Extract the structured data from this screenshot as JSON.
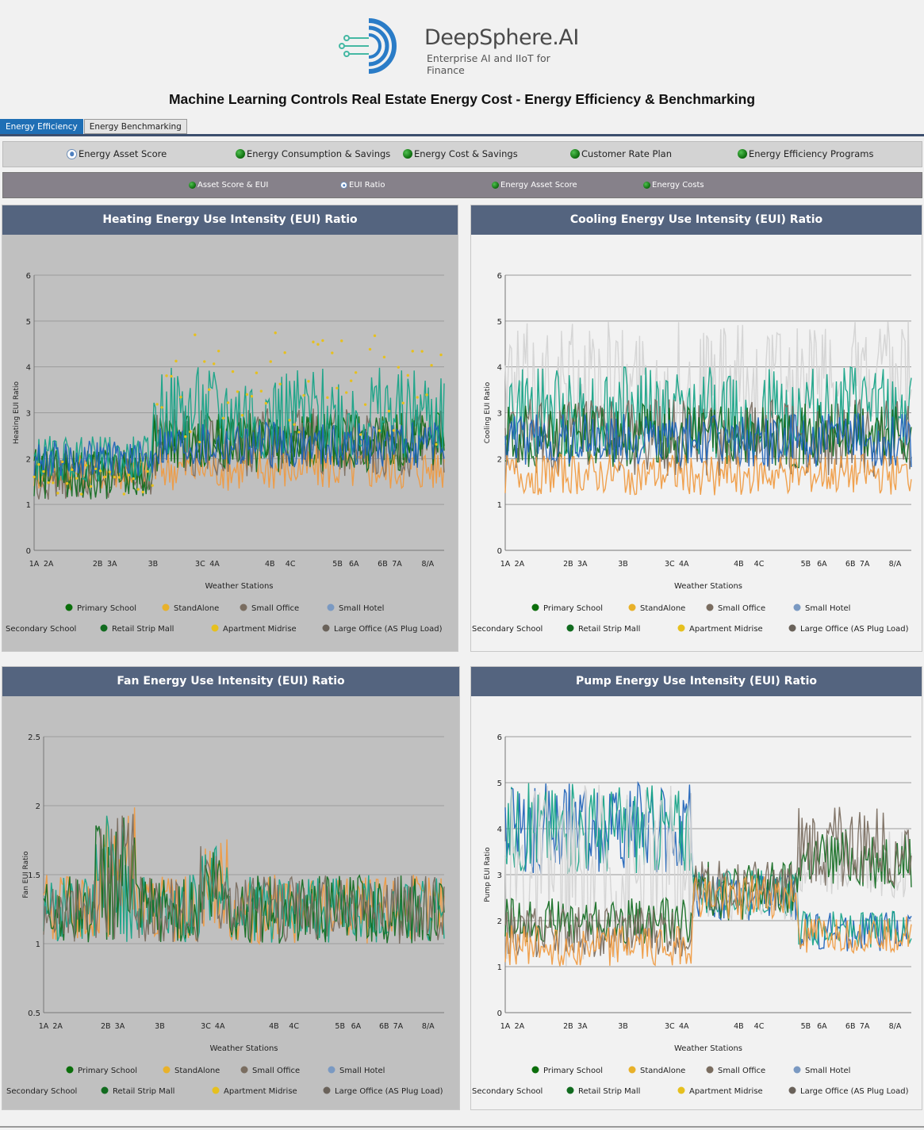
{
  "brand": {
    "name": "DeepSphere.AI",
    "tagline": "Enterprise AI and IIoT for Finance"
  },
  "page_title": "Machine Learning Controls Real Estate Energy Cost - Energy Efficiency & Benchmarking",
  "tabs": [
    {
      "label": "Energy Efficiency",
      "active": true
    },
    {
      "label": "Energy Benchmarking",
      "active": false
    }
  ],
  "nav_primary": [
    {
      "label": "Energy Asset Score",
      "selected": true
    },
    {
      "label": "Energy Consumption & Savings",
      "selected": false
    },
    {
      "label": "Energy Cost & Savings",
      "selected": false
    },
    {
      "label": "Customer Rate Plan",
      "selected": false
    },
    {
      "label": "Energy Efficiency Programs",
      "selected": false
    }
  ],
  "nav_secondary": [
    {
      "label": "Asset Score & EUI",
      "selected": false
    },
    {
      "label": "EUI Ratio",
      "selected": true
    },
    {
      "label": "Energy Asset Score",
      "selected": false
    },
    {
      "label": "Energy Costs",
      "selected": false
    }
  ],
  "legend_row1": [
    "Primary School",
    "StandAlone",
    "Small Office",
    "Small Hotel"
  ],
  "legend_row2": [
    "Secondary School",
    "Retail Strip Mall",
    "Apartment Midrise",
    "Large Office (AS Plug Load)"
  ],
  "series_colors": {
    "Primary School": "#0b6e0b",
    "StandAlone": "#e8b12a",
    "Small Office": "#7a6d60",
    "Small Hotel": "#7a99c2",
    "Secondary School": "#f09a40",
    "Retail Strip Mall": "#116b1f",
    "Apartment Midrise": "#e6c01e",
    "Large Office (AS Plug Load)": "#6a625a"
  },
  "line_colors": {
    "teal": "#14a386",
    "blue": "#1d62b8",
    "light_grey": "#d2d2d2"
  },
  "chart_data": [
    {
      "type": "line",
      "title": "Heating Energy Use Intensity (EUI) Ratio",
      "xlabel": "Weather Stations",
      "ylabel": "Heating EUI Ratio",
      "ylim": [
        0,
        6
      ],
      "yticks": [
        "0",
        "1",
        "2",
        "3",
        "4",
        "5",
        "6"
      ],
      "theme": "grey",
      "x_ticks": [
        {
          "label": "1A",
          "pos": 0.0
        },
        {
          "label": "2A",
          "pos": 0.035
        },
        {
          "label": "2B",
          "pos": 0.155
        },
        {
          "label": "3A",
          "pos": 0.19
        },
        {
          "label": "3B",
          "pos": 0.29
        },
        {
          "label": "3C",
          "pos": 0.405
        },
        {
          "label": "4A",
          "pos": 0.44
        },
        {
          "label": "4B",
          "pos": 0.575
        },
        {
          "label": "4C",
          "pos": 0.625
        },
        {
          "label": "5B",
          "pos": 0.74
        },
        {
          "label": "6A",
          "pos": 0.78
        },
        {
          "label": "6B",
          "pos": 0.85
        },
        {
          "label": "7A",
          "pos": 0.885
        },
        {
          "label": "8/A",
          "pos": 0.96
        }
      ],
      "segments": [
        {
          "end": 0.29,
          "levels": {
            "Primary School": [
              1.3,
              2.3
            ],
            "Secondary School": [
              1.3,
              2.1
            ],
            "Small Office": [
              1.1,
              2.0
            ],
            "Retail Strip Mall": [
              1.1,
              2.2
            ],
            "teal": [
              1.5,
              2.5
            ],
            "blue": [
              1.6,
              2.4
            ],
            "Apartment Midrise": [
              1.2,
              2.0
            ]
          }
        },
        {
          "end": 1.0,
          "levels": {
            "Primary School": [
              1.8,
              3.0
            ],
            "Secondary School": [
              1.3,
              2.3
            ],
            "Small Office": [
              1.6,
              3.1
            ],
            "Retail Strip Mall": [
              1.7,
              3.0
            ],
            "teal": [
              2.0,
              4.0
            ],
            "blue": [
              1.8,
              2.8
            ],
            "Apartment Midrise": [
              2.3,
              4.8
            ]
          }
        }
      ],
      "scatter_series": [
        "Apartment Midrise"
      ]
    },
    {
      "type": "line",
      "title": "Cooling Energy Use Intensity (EUI) Ratio",
      "xlabel": "Weather Stations",
      "ylabel": "Cooling EUI Ratio",
      "ylim": [
        0,
        6
      ],
      "yticks": [
        "0",
        "1",
        "2",
        "3",
        "4",
        "5",
        "6"
      ],
      "theme": "white",
      "x_ticks": [
        {
          "label": "1A",
          "pos": 0.0
        },
        {
          "label": "2A",
          "pos": 0.035
        },
        {
          "label": "2B",
          "pos": 0.155
        },
        {
          "label": "3A",
          "pos": 0.19
        },
        {
          "label": "3B",
          "pos": 0.29
        },
        {
          "label": "3C",
          "pos": 0.405
        },
        {
          "label": "4A",
          "pos": 0.44
        },
        {
          "label": "4B",
          "pos": 0.575
        },
        {
          "label": "4C",
          "pos": 0.625
        },
        {
          "label": "5B",
          "pos": 0.74
        },
        {
          "label": "6A",
          "pos": 0.78
        },
        {
          "label": "6B",
          "pos": 0.85
        },
        {
          "label": "7A",
          "pos": 0.885
        },
        {
          "label": "8/A",
          "pos": 0.96
        }
      ],
      "segments": [
        {
          "end": 1.0,
          "levels": {
            "light_grey": [
              2.0,
              5.0
            ],
            "teal": [
              2.0,
              4.0
            ],
            "Small Office": [
              1.6,
              3.3
            ],
            "Retail Strip Mall": [
              1.8,
              3.2
            ],
            "blue": [
              1.8,
              3.0
            ],
            "Secondary School": [
              1.2,
              2.1
            ]
          }
        }
      ],
      "scatter_series": []
    },
    {
      "type": "line",
      "title": "Fan Energy Use Intensity (EUI) Ratio",
      "xlabel": "Weather Stations",
      "ylabel": "Fan EUI Ratio",
      "ylim": [
        0.5,
        2.5
      ],
      "yticks": [
        "0.5",
        "1",
        "1.5",
        "2",
        "2.5"
      ],
      "theme": "grey",
      "x_ticks": [
        {
          "label": "1A",
          "pos": 0.0
        },
        {
          "label": "2A",
          "pos": 0.035
        },
        {
          "label": "2B",
          "pos": 0.155
        },
        {
          "label": "3A",
          "pos": 0.19
        },
        {
          "label": "3B",
          "pos": 0.29
        },
        {
          "label": "3C",
          "pos": 0.405
        },
        {
          "label": "4A",
          "pos": 0.44
        },
        {
          "label": "4B",
          "pos": 0.575
        },
        {
          "label": "4C",
          "pos": 0.625
        },
        {
          "label": "5B",
          "pos": 0.74
        },
        {
          "label": "6A",
          "pos": 0.78
        },
        {
          "label": "6B",
          "pos": 0.85
        },
        {
          "label": "7A",
          "pos": 0.885
        },
        {
          "label": "8/A",
          "pos": 0.96
        }
      ],
      "segments": [
        {
          "end": 0.13,
          "levels": {
            "Secondary School": [
              1.0,
              1.5
            ],
            "teal": [
              1.0,
              1.5
            ],
            "Retail Strip Mall": [
              1.0,
              1.5
            ],
            "Small Office": [
              1.0,
              1.5
            ]
          }
        },
        {
          "end": 0.23,
          "levels": {
            "Secondary School": [
              1.0,
              2.0
            ],
            "teal": [
              1.0,
              1.95
            ],
            "Retail Strip Mall": [
              1.0,
              1.95
            ],
            "Small Office": [
              1.0,
              1.95
            ]
          }
        },
        {
          "end": 0.39,
          "levels": {
            "Secondary School": [
              1.0,
              1.5
            ],
            "teal": [
              1.0,
              1.5
            ],
            "Retail Strip Mall": [
              1.0,
              1.5
            ],
            "Small Office": [
              1.0,
              1.5
            ]
          }
        },
        {
          "end": 0.46,
          "levels": {
            "Secondary School": [
              1.1,
              1.8
            ],
            "teal": [
              1.1,
              1.8
            ],
            "Retail Strip Mall": [
              1.1,
              1.75
            ],
            "Small Office": [
              1.1,
              1.75
            ]
          }
        },
        {
          "end": 1.0,
          "levels": {
            "Secondary School": [
              1.0,
              1.5
            ],
            "teal": [
              1.0,
              1.5
            ],
            "Retail Strip Mall": [
              1.0,
              1.5
            ],
            "Small Office": [
              1.0,
              1.5
            ]
          }
        }
      ],
      "scatter_series": []
    },
    {
      "type": "line",
      "title": "Pump Energy Use Intensity (EUI) Ratio",
      "xlabel": "Weather Stations",
      "ylabel": "Pump EUI Ratio",
      "ylim": [
        0,
        6
      ],
      "yticks": [
        "0",
        "1",
        "2",
        "3",
        "4",
        "5",
        "6"
      ],
      "theme": "white",
      "x_ticks": [
        {
          "label": "1A",
          "pos": 0.0
        },
        {
          "label": "2A",
          "pos": 0.035
        },
        {
          "label": "2B",
          "pos": 0.155
        },
        {
          "label": "3A",
          "pos": 0.19
        },
        {
          "label": "3B",
          "pos": 0.29
        },
        {
          "label": "3C",
          "pos": 0.405
        },
        {
          "label": "4A",
          "pos": 0.44
        },
        {
          "label": "4B",
          "pos": 0.575
        },
        {
          "label": "4C",
          "pos": 0.625
        },
        {
          "label": "5B",
          "pos": 0.74
        },
        {
          "label": "6A",
          "pos": 0.78
        },
        {
          "label": "6B",
          "pos": 0.85
        },
        {
          "label": "7A",
          "pos": 0.885
        },
        {
          "label": "8/A",
          "pos": 0.96
        }
      ],
      "segments": [
        {
          "end": 0.46,
          "levels": {
            "blue": [
              3.0,
              5.0
            ],
            "teal": [
              3.0,
              5.0
            ],
            "light_grey": [
              1.0,
              5.0
            ],
            "Retail Strip Mall": [
              1.5,
              2.5
            ],
            "Small Office": [
              1.2,
              2.3
            ],
            "Secondary School": [
              1.0,
              1.9
            ]
          }
        },
        {
          "end": 0.72,
          "levels": {
            "blue": [
              2.0,
              3.0
            ],
            "teal": [
              2.1,
              3.1
            ],
            "light_grey": [
              2.0,
              3.0
            ],
            "Retail Strip Mall": [
              2.0,
              3.3
            ],
            "Small Office": [
              2.2,
              3.3
            ],
            "Secondary School": [
              2.0,
              3.0
            ]
          }
        },
        {
          "end": 1.0,
          "levels": {
            "blue": [
              1.3,
              2.2
            ],
            "teal": [
              1.4,
              2.2
            ],
            "light_grey": [
              2.5,
              4.0
            ],
            "Retail Strip Mall": [
              2.7,
              4.0
            ],
            "Small Office": [
              2.7,
              4.5
            ],
            "Secondary School": [
              1.3,
              2.1
            ]
          }
        }
      ],
      "scatter_series": []
    }
  ]
}
